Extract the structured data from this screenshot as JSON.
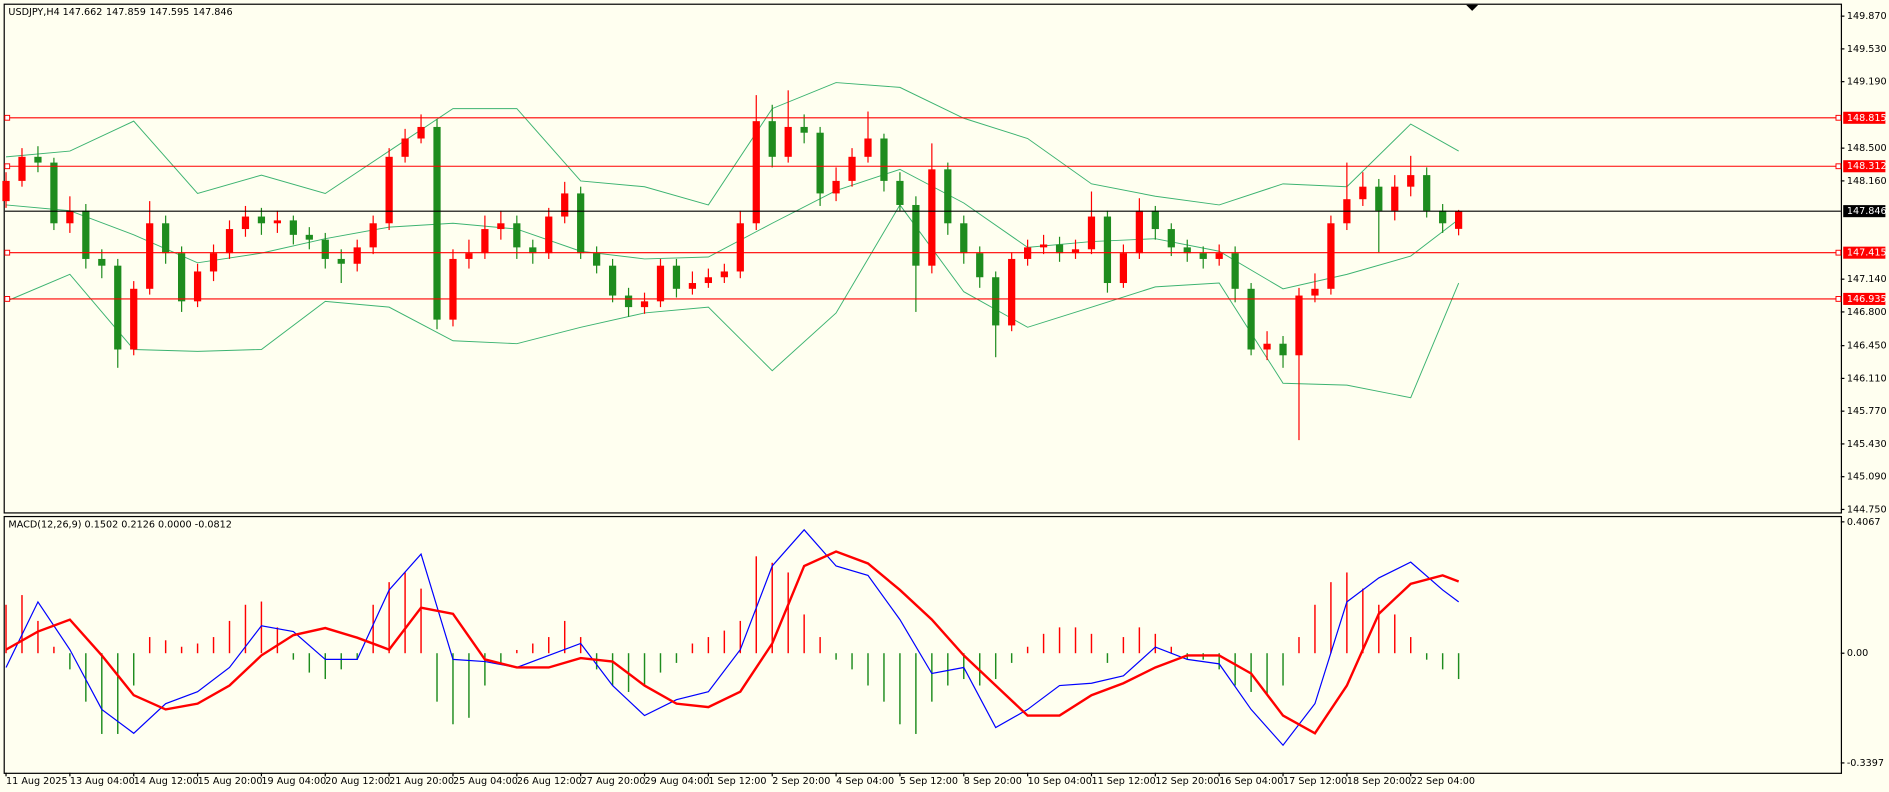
{
  "chart_data": [
    {
      "type": "candlestick",
      "title": "USDJPY,H4",
      "header_values": [
        147.662,
        147.859,
        147.595,
        147.846
      ],
      "categories": [
        "11 Aug 2025",
        null,
        null,
        null,
        "13 Aug 04:00",
        null,
        null,
        null,
        "14 Aug 12:00",
        null,
        null,
        null,
        "15 Aug 20:00",
        null,
        null,
        null,
        "19 Aug 04:00",
        null,
        null,
        null,
        "20 Aug 12:00",
        null,
        null,
        null,
        "21 Aug 20:00",
        null,
        null,
        null,
        "25 Aug 04:00",
        null,
        null,
        null,
        "26 Aug 12:00",
        null,
        null,
        null,
        "27 Aug 20:00",
        null,
        null,
        null,
        "29 Aug 04:00",
        null,
        null,
        null,
        "1 Sep 12:00",
        null,
        null,
        null,
        "2 Sep 20:00",
        null,
        null,
        null,
        "4 Sep 04:00",
        null,
        null,
        null,
        "5 Sep 12:00",
        null,
        null,
        null,
        "8 Sep 20:00",
        null,
        null,
        null,
        "10 Sep 04:00",
        null,
        null,
        null,
        "11 Sep 12:00",
        null,
        null,
        null,
        "12 Sep 20:00",
        null,
        null,
        null,
        "16 Sep 04:00",
        null,
        null,
        null,
        "17 Sep 12:00",
        null,
        null,
        null,
        "18 Sep 20:00",
        null,
        null,
        null,
        "22 Sep 04:00",
        null,
        null,
        null
      ],
      "open": [
        147.95,
        148.16,
        148.41,
        148.35,
        147.72,
        147.85,
        147.35,
        147.28,
        146.41,
        147.04,
        147.72,
        147.41,
        146.91,
        147.22,
        147.41,
        147.66,
        147.79,
        147.72,
        147.75,
        147.6,
        147.55,
        147.35,
        147.3,
        147.47,
        147.72,
        148.41,
        148.6,
        148.72,
        146.72,
        147.35,
        147.41,
        147.66,
        147.72,
        147.47,
        147.41,
        147.79,
        148.03,
        147.41,
        147.28,
        146.97,
        146.85,
        146.91,
        147.28,
        147.04,
        147.1,
        147.16,
        147.22,
        147.72,
        148.78,
        148.41,
        148.72,
        148.66,
        148.03,
        148.16,
        148.41,
        148.6,
        148.16,
        147.91,
        147.28,
        148.28,
        147.72,
        147.41,
        147.16,
        146.66,
        147.35,
        147.47,
        147.5,
        147.41,
        147.45,
        147.79,
        147.1,
        147.41,
        147.85,
        147.66,
        147.47,
        147.41,
        147.35,
        147.41,
        147.04,
        146.41,
        146.47,
        146.35,
        146.97,
        147.04,
        147.72,
        147.97,
        148.1,
        147.85,
        148.1,
        148.22,
        147.85,
        147.662
      ],
      "high": [
        148.25,
        148.5,
        148.52,
        148.4,
        148.0,
        147.92,
        147.45,
        147.35,
        147.12,
        147.95,
        147.8,
        147.48,
        147.3,
        147.5,
        147.75,
        147.9,
        147.88,
        147.85,
        147.8,
        147.68,
        147.62,
        147.45,
        147.55,
        147.8,
        148.5,
        148.7,
        148.85,
        148.8,
        147.45,
        147.55,
        147.8,
        147.85,
        147.8,
        147.55,
        147.88,
        148.15,
        148.1,
        147.48,
        147.35,
        147.05,
        147.0,
        147.35,
        147.35,
        147.22,
        147.25,
        147.3,
        147.85,
        149.05,
        148.95,
        149.1,
        148.85,
        148.72,
        148.3,
        148.5,
        148.88,
        148.65,
        148.25,
        148.0,
        148.55,
        148.35,
        147.8,
        147.48,
        147.22,
        147.42,
        147.55,
        147.6,
        147.58,
        147.55,
        148.05,
        147.85,
        147.5,
        147.98,
        147.9,
        147.72,
        147.55,
        147.48,
        147.5,
        147.48,
        147.1,
        146.6,
        146.55,
        147.05,
        147.2,
        147.8,
        148.35,
        148.25,
        148.18,
        148.22,
        148.42,
        148.3,
        147.92,
        147.859
      ],
      "low": [
        147.88,
        148.1,
        148.25,
        147.65,
        147.62,
        147.25,
        147.15,
        146.22,
        146.35,
        146.98,
        147.3,
        146.8,
        146.85,
        147.12,
        147.35,
        147.58,
        147.6,
        147.62,
        147.5,
        147.45,
        147.25,
        147.1,
        147.22,
        147.4,
        147.65,
        148.35,
        148.55,
        146.62,
        146.65,
        147.25,
        147.35,
        147.55,
        147.35,
        147.3,
        147.35,
        147.72,
        147.35,
        147.2,
        146.9,
        146.75,
        146.78,
        146.85,
        146.95,
        146.98,
        147.05,
        147.1,
        147.15,
        147.65,
        148.3,
        148.35,
        148.55,
        147.9,
        147.95,
        148.1,
        148.35,
        148.05,
        147.85,
        146.8,
        147.2,
        147.6,
        147.3,
        147.05,
        146.33,
        146.6,
        147.28,
        147.4,
        147.32,
        147.35,
        147.4,
        147.0,
        147.05,
        147.35,
        147.55,
        147.38,
        147.32,
        147.25,
        147.28,
        146.9,
        146.35,
        146.3,
        146.22,
        145.47,
        146.9,
        146.98,
        147.65,
        147.9,
        147.42,
        147.75,
        148.0,
        147.78,
        147.62,
        147.595
      ],
      "close": [
        148.16,
        148.41,
        148.35,
        147.72,
        147.85,
        147.35,
        147.28,
        146.41,
        147.04,
        147.72,
        147.41,
        146.91,
        147.22,
        147.41,
        147.66,
        147.79,
        147.72,
        147.75,
        147.6,
        147.55,
        147.35,
        147.3,
        147.47,
        147.72,
        148.41,
        148.6,
        148.72,
        146.72,
        147.35,
        147.41,
        147.66,
        147.72,
        147.47,
        147.41,
        147.79,
        148.03,
        147.41,
        147.28,
        146.97,
        146.85,
        146.91,
        147.28,
        147.04,
        147.1,
        147.16,
        147.22,
        147.72,
        148.78,
        148.41,
        148.72,
        148.66,
        148.03,
        148.16,
        148.41,
        148.6,
        148.16,
        147.91,
        147.28,
        148.28,
        147.72,
        147.41,
        147.16,
        146.66,
        147.35,
        147.47,
        147.5,
        147.41,
        147.45,
        147.79,
        147.1,
        147.41,
        147.85,
        147.66,
        147.47,
        147.41,
        147.35,
        147.41,
        147.04,
        146.41,
        146.47,
        146.35,
        146.97,
        147.04,
        147.72,
        147.97,
        148.1,
        147.85,
        148.1,
        148.22,
        147.85,
        147.72,
        147.846
      ],
      "up_color": "#ff0000",
      "down_color": "#1e8c1e",
      "bands": {
        "color": "#3cb371",
        "x": [
          0,
          4,
          8,
          12,
          16,
          20,
          24,
          28,
          32,
          36,
          40,
          44,
          48,
          52,
          56,
          60,
          64,
          68,
          72,
          76,
          80,
          84,
          88,
          91
        ],
        "upper": [
          148.41,
          148.47,
          148.78,
          148.03,
          148.22,
          148.03,
          148.47,
          148.91,
          148.91,
          148.16,
          148.1,
          147.91,
          148.91,
          149.18,
          149.13,
          148.81,
          148.6,
          148.13,
          148.0,
          147.91,
          148.13,
          148.1,
          148.75,
          148.47
        ],
        "middle": [
          147.91,
          147.85,
          147.6,
          147.31,
          147.41,
          147.56,
          147.68,
          147.72,
          147.66,
          147.43,
          147.35,
          147.37,
          147.72,
          148.06,
          148.28,
          147.93,
          147.47,
          147.53,
          147.56,
          147.43,
          147.04,
          147.19,
          147.38,
          147.76
        ],
        "lower": [
          146.91,
          147.19,
          146.41,
          146.39,
          146.41,
          146.91,
          146.85,
          146.5,
          146.47,
          146.64,
          146.79,
          146.85,
          146.19,
          146.79,
          147.91,
          147.01,
          146.64,
          146.85,
          147.06,
          147.1,
          146.06,
          146.04,
          145.91,
          147.1
        ]
      },
      "levels": [
        148.815,
        148.312,
        147.415,
        146.935
      ],
      "level_color": "#ff0000",
      "last_price": 147.846,
      "last_price_color": "#000000",
      "ylim": [
        144.72,
        150.0
      ],
      "yticks": [
        {
          "value": 149.87,
          "label": "149.870"
        },
        {
          "value": 149.53,
          "label": "149.530"
        },
        {
          "value": 149.19,
          "label": "149.190"
        },
        {
          "value": 148.5,
          "label": "148.500"
        },
        {
          "value": 148.16,
          "label": "148.160"
        },
        {
          "value": 147.14,
          "label": "147.140"
        },
        {
          "value": 146.8,
          "label": "146.800"
        },
        {
          "value": 146.45,
          "label": "146.450"
        },
        {
          "value": 146.11,
          "label": "146.110"
        },
        {
          "value": 145.77,
          "label": "145.770"
        },
        {
          "value": 145.43,
          "label": "145.430"
        },
        {
          "value": 145.09,
          "label": "145.090"
        },
        {
          "value": 144.75,
          "label": "144.750"
        }
      ]
    },
    {
      "type": "macd",
      "title": "MACD(12,26,9) 0.1502 0.2126 0.0000 -0.0812",
      "histogram": [
        0.15,
        0.18,
        0.1,
        0.02,
        -0.05,
        -0.15,
        -0.25,
        -0.25,
        -0.1,
        0.05,
        0.04,
        0.02,
        0.03,
        0.05,
        0.1,
        0.15,
        0.16,
        0.08,
        -0.02,
        -0.06,
        -0.08,
        -0.05,
        -0.02,
        0.15,
        0.22,
        0.25,
        0.2,
        -0.15,
        -0.22,
        -0.2,
        -0.1,
        -0.03,
        0.01,
        0.03,
        0.05,
        0.1,
        0.05,
        -0.05,
        -0.1,
        -0.12,
        -0.1,
        -0.06,
        -0.03,
        0.03,
        0.05,
        0.07,
        0.1,
        0.3,
        0.28,
        0.25,
        0.12,
        0.05,
        -0.02,
        -0.05,
        -0.1,
        -0.15,
        -0.22,
        -0.25,
        -0.15,
        -0.1,
        -0.08,
        -0.1,
        -0.08,
        -0.03,
        0.02,
        0.06,
        0.08,
        0.08,
        0.06,
        -0.03,
        0.05,
        0.08,
        0.06,
        0.02,
        -0.02,
        -0.02,
        -0.05,
        -0.1,
        -0.12,
        -0.13,
        -0.1,
        0.05,
        0.15,
        0.22,
        0.25,
        0.2,
        0.15,
        0.12,
        0.05,
        -0.02,
        -0.05,
        -0.08
      ],
      "histogram_up_color": "#ff0000",
      "histogram_down_color": "#1e8c1e",
      "x": [
        0,
        2,
        4,
        6,
        8,
        10,
        12,
        14,
        16,
        18,
        20,
        22,
        24,
        26,
        28,
        30,
        32,
        34,
        36,
        38,
        40,
        42,
        44,
        46,
        48,
        50,
        52,
        54,
        56,
        58,
        60,
        62,
        64,
        66,
        68,
        70,
        72,
        74,
        76,
        78,
        80,
        82,
        84,
        86,
        88,
        90,
        91
      ],
      "series": [
        {
          "color": "#0000ff",
          "values": [
            -0.044,
            0.159,
            0.011,
            -0.174,
            -0.248,
            -0.156,
            -0.119,
            -0.044,
            0.085,
            0.067,
            -0.019,
            -0.019,
            0.196,
            0.307,
            -0.019,
            -0.026,
            -0.044,
            -0.007,
            0.03,
            -0.1,
            -0.193,
            -0.144,
            -0.119,
            0.011,
            0.27,
            0.382,
            0.27,
            0.241,
            0.104,
            -0.063,
            -0.044,
            -0.23,
            -0.174,
            -0.1,
            -0.093,
            -0.07,
            0.019,
            -0.019,
            -0.033,
            -0.174,
            -0.285,
            -0.156,
            0.159,
            0.233,
            0.282,
            0.196,
            0.159
          ]
        },
        {
          "color": "#ff0000",
          "values": [
            0.011,
            0.067,
            0.104,
            -0.007,
            -0.13,
            -0.174,
            -0.156,
            -0.1,
            -0.007,
            0.056,
            0.078,
            0.048,
            0.011,
            0.141,
            0.122,
            -0.019,
            -0.044,
            -0.044,
            -0.015,
            -0.026,
            -0.1,
            -0.156,
            -0.167,
            -0.119,
            0.03,
            0.27,
            0.315,
            0.278,
            0.196,
            0.104,
            -0.007,
            -0.1,
            -0.193,
            -0.193,
            -0.13,
            -0.093,
            -0.044,
            -0.007,
            -0.007,
            -0.063,
            -0.193,
            -0.248,
            -0.1,
            0.122,
            0.215,
            0.241,
            0.222
          ]
        }
      ],
      "ylim": [
        -0.37,
        0.425
      ],
      "yticks": [
        0.4067,
        {
          "value": 0,
          "label": "0.00"
        },
        -0.3397
      ]
    }
  ]
}
